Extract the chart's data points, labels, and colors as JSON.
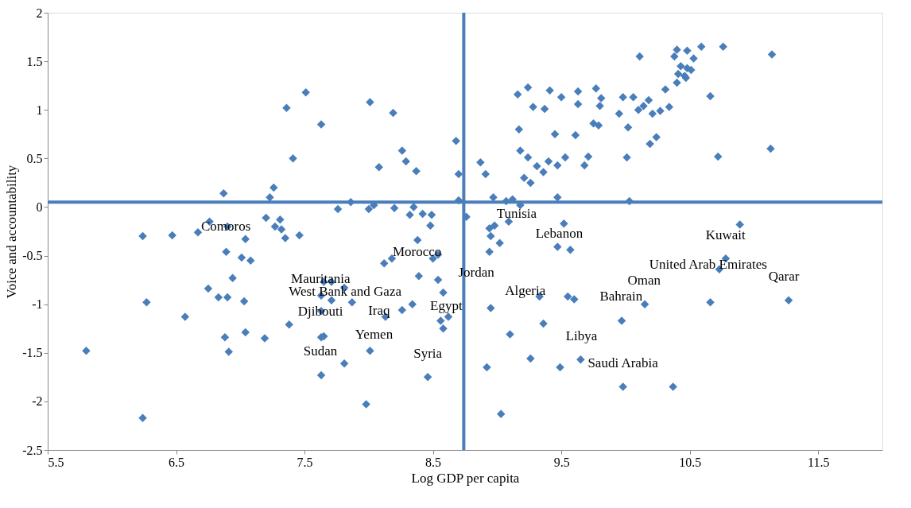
{
  "chart_data": {
    "type": "scatter",
    "xlabel": "Log GDP per capita",
    "ylabel": "Voice and accountability",
    "xlim": [
      5.5,
      12
    ],
    "xticks": [
      5.5,
      6.5,
      7.5,
      8.5,
      9.5,
      10.5,
      11.5
    ],
    "ylim": [
      -2.5,
      2
    ],
    "yticks": [
      {
        "value": -2.5,
        "label": "-2.5"
      },
      {
        "value": -2,
        "label": "-2"
      },
      {
        "value": -1.5,
        "label": "-1.5"
      },
      {
        "value": -1,
        "label": "-1"
      },
      {
        "value": -0.5,
        "label": "-0.5"
      },
      {
        "value": 0,
        "label": "0"
      },
      {
        "value": 0.5,
        "label": "0.5"
      },
      {
        "value": 1,
        "label": "1"
      },
      {
        "value": 1.5,
        "label": "1.5"
      },
      {
        "value": 2,
        "label": "2"
      }
    ],
    "grid": false,
    "marker": "diamond",
    "series": [
      {
        "color": "#4a7ebb",
        "x": [
          8.68,
          8.7,
          8.7,
          8.87,
          8.91,
          8.97,
          9.07,
          9.12,
          9.16,
          9.24,
          9.17,
          9.18,
          9.24,
          9.21,
          9.26,
          9.28,
          9.37,
          9.41,
          9.31,
          9.36,
          9.4,
          9.45,
          9.47,
          9.47,
          9.5,
          9.53,
          9.61,
          9.63,
          9.63,
          9.68,
          9.71,
          9.75,
          9.79,
          9.77,
          9.81,
          9.8,
          9.95,
          9.98,
          10.06,
          10.02,
          10.01,
          10.03,
          10.1,
          10.14,
          10.18,
          10.21,
          10.19,
          10.24,
          10.27,
          10.34,
          10.31,
          10.11,
          10.4,
          10.38,
          10.48,
          10.53,
          10.43,
          10.48,
          10.51,
          10.41,
          10.46,
          10.4,
          10.47,
          10.59,
          10.76,
          10.66,
          10.72,
          11.14,
          11.13,
          7.51,
          7.36,
          7.63,
          7.41,
          7.26,
          6.87,
          7.23,
          7.76,
          7.86,
          7.2,
          7.31,
          7.27,
          7.32,
          6.76,
          6.9,
          6.67,
          6.24,
          6.47,
          7.04,
          7.35,
          7.46,
          6.89,
          7.01,
          7.08,
          6.94,
          6.75,
          6.83,
          6.9,
          7.03,
          6.27,
          6.57,
          7.38,
          6.88,
          7.04,
          7.19,
          7.63,
          7.65,
          5.8,
          6.91,
          7.81,
          7.63,
          6.24,
          7.65,
          7.71,
          7.81,
          7.63,
          7.71,
          7.63,
          7.87,
          8.01,
          8.19,
          8.08,
          8.26,
          8.29,
          8.37,
          8.0,
          8.04,
          8.2,
          8.32,
          8.35,
          8.42,
          8.49,
          8.48,
          8.76,
          8.38,
          8.12,
          8.18,
          8.5,
          8.54,
          8.39,
          8.54,
          8.58,
          8.13,
          8.26,
          8.34,
          8.56,
          8.62,
          8.58,
          8.01,
          8.46,
          7.98,
          8.94,
          8.98,
          8.95,
          9.02,
          8.94,
          9.09,
          9.52,
          9.47,
          9.57,
          8.95,
          9.33,
          9.55,
          9.6,
          10.15,
          9.36,
          9.97,
          9.1,
          9.26,
          8.92,
          9.49,
          9.98,
          9.03,
          9.65,
          9.18,
          10.89,
          10.78,
          10.73,
          10.66,
          11.27,
          10.37
        ],
        "values": [
          0.68,
          0.34,
          0.07,
          0.46,
          0.34,
          0.1,
          0.06,
          0.08,
          1.16,
          1.23,
          0.8,
          0.58,
          0.51,
          0.3,
          0.25,
          1.03,
          1.01,
          1.2,
          0.42,
          0.36,
          0.47,
          0.75,
          0.1,
          0.43,
          1.13,
          0.51,
          0.74,
          1.19,
          1.06,
          0.43,
          0.52,
          0.86,
          0.84,
          1.22,
          1.12,
          1.04,
          0.96,
          1.13,
          1.13,
          0.82,
          0.51,
          0.06,
          1.0,
          1.04,
          1.1,
          0.96,
          0.65,
          0.72,
          0.99,
          1.03,
          1.21,
          1.55,
          1.62,
          1.55,
          1.61,
          1.53,
          1.45,
          1.43,
          1.41,
          1.37,
          1.35,
          1.28,
          1.33,
          1.65,
          1.65,
          1.14,
          0.52,
          1.57,
          0.6,
          1.18,
          1.02,
          0.85,
          0.5,
          0.2,
          0.14,
          0.1,
          -0.02,
          0.05,
          -0.11,
          -0.13,
          -0.2,
          -0.23,
          -0.15,
          -0.2,
          -0.26,
          -0.3,
          -0.29,
          -0.33,
          -0.32,
          -0.29,
          -0.46,
          -0.52,
          -0.55,
          -0.73,
          -0.84,
          -0.93,
          -0.93,
          -0.97,
          -0.98,
          -1.13,
          -1.21,
          -1.34,
          -1.29,
          -1.35,
          -1.34,
          -1.33,
          -1.48,
          -1.49,
          -1.61,
          -1.73,
          -2.17,
          -0.77,
          -0.77,
          -0.83,
          -0.91,
          -0.96,
          -1.07,
          -0.98,
          1.08,
          0.97,
          0.41,
          0.58,
          0.47,
          0.37,
          -0.02,
          0.02,
          -0.01,
          -0.08,
          0.0,
          -0.07,
          -0.08,
          -0.19,
          -0.1,
          -0.34,
          -0.58,
          -0.53,
          -0.53,
          -0.49,
          -0.71,
          -0.75,
          -0.88,
          -1.13,
          -1.06,
          -1.0,
          -1.17,
          -1.13,
          -1.25,
          -1.48,
          -1.75,
          -2.03,
          -0.22,
          -0.19,
          -0.3,
          -0.37,
          -0.46,
          -0.15,
          -0.17,
          -0.41,
          -0.44,
          -1.04,
          -0.92,
          -0.92,
          -0.95,
          -1.0,
          -1.2,
          -1.17,
          -1.31,
          -1.56,
          -1.65,
          -1.65,
          -1.85,
          -2.13,
          -1.57,
          0.02,
          -0.18,
          -0.53,
          -0.64,
          -0.98,
          -0.96,
          -1.85
        ]
      }
    ],
    "ref_lines": [
      {
        "axis": "x",
        "value": 8.74,
        "color": "#4a7ebb"
      },
      {
        "axis": "y",
        "value": 0.05,
        "color": "#4a7ebb"
      }
    ],
    "annotations": [
      {
        "text": "Comoros",
        "x": 6.9,
        "y": -0.2
      },
      {
        "text": "Mauritania",
        "x": 7.65,
        "y": -0.77
      },
      {
        "text": "West Bank and Gaza",
        "x": 7.81,
        "y": -0.83
      },
      {
        "text": "Djibouti",
        "x": 7.63,
        "y": -1.07
      },
      {
        "text": "Iraq",
        "x": 8.13,
        "y": -1.13
      },
      {
        "text": "Yemen",
        "x": 8.01,
        "y": -1.48
      },
      {
        "text": "Sudan",
        "x": 7.63,
        "y": -1.34
      },
      {
        "text": "Syria",
        "x": 8.46,
        "y": -1.75
      },
      {
        "text": "Morocco",
        "x": 8.5,
        "y": -0.53
      },
      {
        "text": "Jordan",
        "x": 8.54,
        "y": -0.75
      },
      {
        "text": "Egypt",
        "x": 8.56,
        "y": -1.17
      },
      {
        "text": "Tunisia",
        "x": 9.09,
        "y": -0.15
      },
      {
        "text": "Lebanon",
        "x": 9.52,
        "y": -0.17
      },
      {
        "text": "Algeria",
        "x": 9.33,
        "y": -0.92
      },
      {
        "text": "Libya",
        "x": 9.36,
        "y": -1.2
      },
      {
        "text": "Saudi Arabia",
        "x": 9.49,
        "y": -1.65
      },
      {
        "text": "Bahrain",
        "x": 9.6,
        "y": -0.95
      },
      {
        "text": "Oman",
        "x": 10.15,
        "y": -1.0
      },
      {
        "text": "United Arab Emirates",
        "x": 10.73,
        "y": -0.64
      },
      {
        "text": "Kuwait",
        "x": 10.89,
        "y": -0.18
      },
      {
        "text": "Qarar",
        "x": 11.27,
        "y": -0.96
      }
    ]
  }
}
